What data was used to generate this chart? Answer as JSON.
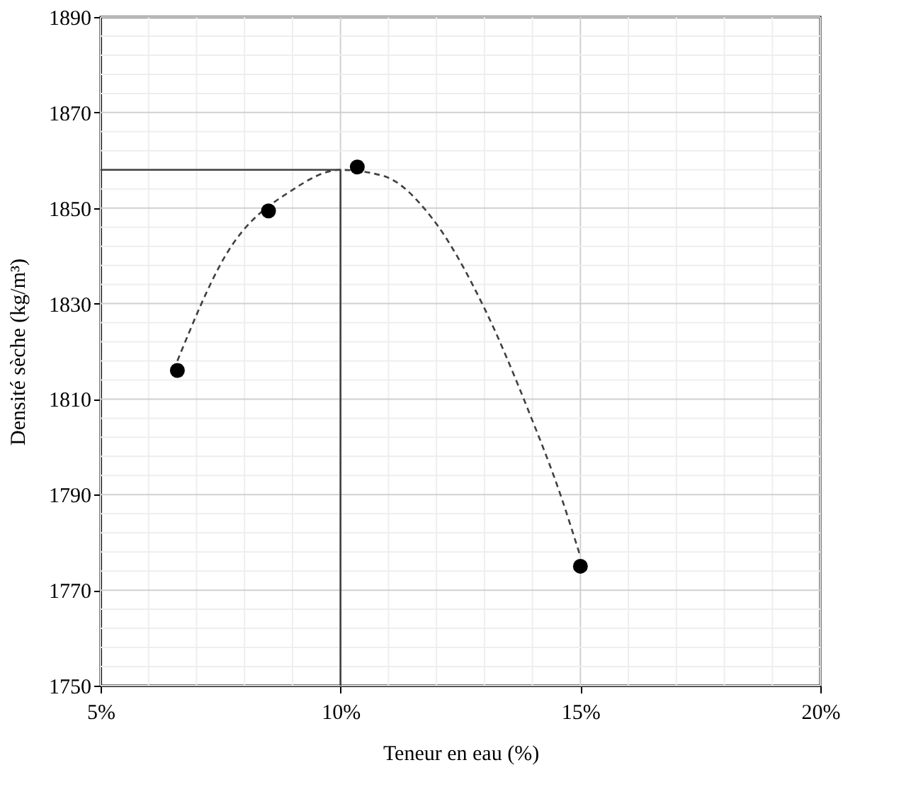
{
  "chart_data": {
    "type": "scatter",
    "xlabel": "Teneur en eau (%)",
    "ylabel": "Densité sèche (kg/m³)",
    "grid": true,
    "marker": "circle",
    "xlim": [
      5,
      20
    ],
    "ylim": [
      1750,
      1890
    ],
    "xticks": [
      {
        "value": 5,
        "label": "5%"
      },
      {
        "value": 6,
        "label": null
      },
      {
        "value": 7,
        "label": null
      },
      {
        "value": 8,
        "label": null
      },
      {
        "value": 9,
        "label": null
      },
      {
        "value": 10,
        "label": "10%"
      },
      {
        "value": 11,
        "label": null
      },
      {
        "value": 12,
        "label": null
      },
      {
        "value": 13,
        "label": null
      },
      {
        "value": 14,
        "label": null
      },
      {
        "value": 15,
        "label": "15%"
      },
      {
        "value": 16,
        "label": null
      },
      {
        "value": 17,
        "label": null
      },
      {
        "value": 18,
        "label": null
      },
      {
        "value": 19,
        "label": null
      },
      {
        "value": 20,
        "label": "20%"
      }
    ],
    "yticks": [
      1750,
      {
        "value": 1754,
        "label": null
      },
      {
        "value": 1758,
        "label": null
      },
      {
        "value": 1762,
        "label": null
      },
      {
        "value": 1766,
        "label": null
      },
      1770,
      {
        "value": 1774,
        "label": null
      },
      {
        "value": 1778,
        "label": null
      },
      {
        "value": 1782,
        "label": null
      },
      {
        "value": 1786,
        "label": null
      },
      1790,
      {
        "value": 1794,
        "label": null
      },
      {
        "value": 1798,
        "label": null
      },
      {
        "value": 1802,
        "label": null
      },
      {
        "value": 1806,
        "label": null
      },
      1810,
      {
        "value": 1814,
        "label": null
      },
      {
        "value": 1818,
        "label": null
      },
      {
        "value": 1822,
        "label": null
      },
      {
        "value": 1826,
        "label": null
      },
      1830,
      {
        "value": 1834,
        "label": null
      },
      {
        "value": 1838,
        "label": null
      },
      {
        "value": 1842,
        "label": null
      },
      {
        "value": 1846,
        "label": null
      },
      1850,
      {
        "value": 1854,
        "label": null
      },
      {
        "value": 1858,
        "label": null
      },
      {
        "value": 1862,
        "label": null
      },
      {
        "value": 1866,
        "label": null
      },
      1870,
      {
        "value": 1874,
        "label": null
      },
      {
        "value": 1878,
        "label": null
      },
      {
        "value": 1882,
        "label": null
      },
      {
        "value": 1886,
        "label": null
      },
      1890
    ],
    "series": [
      {
        "type": "line",
        "color": "#404040",
        "line_style": "solid",
        "marker": "none",
        "x": [
          5,
          10,
          10
        ],
        "values": [
          1858,
          1858,
          1750
        ]
      },
      {
        "type": "line",
        "color": "#404040",
        "line_style": "dashed",
        "marker": "none",
        "x": [
          6.6,
          7.6,
          9.0,
          10.0,
          10.9,
          11.9,
          13.0,
          13.9,
          14.6,
          15.0
        ],
        "values": [
          1818,
          1840,
          1853.8,
          1858,
          1856.7,
          1848,
          1829,
          1808,
          1789.5,
          1777
        ]
      },
      {
        "color": "#000000",
        "x": [
          6.6,
          8.5,
          10.35,
          15.0
        ],
        "values": [
          1816,
          1849.4,
          1858.6,
          1775
        ]
      }
    ]
  }
}
